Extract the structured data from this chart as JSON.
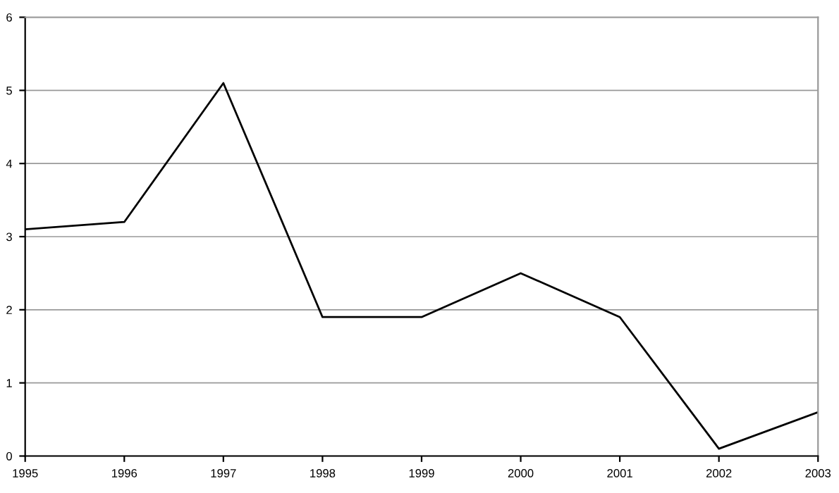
{
  "chart_data": {
    "type": "line",
    "x": [
      1995,
      1996,
      1997,
      1998,
      1999,
      2000,
      2001,
      2002,
      2003
    ],
    "series": [
      {
        "color": "#000000",
        "values": [
          3.1,
          3.2,
          5.1,
          1.9,
          1.9,
          2.5,
          1.9,
          0.1,
          0.6
        ]
      }
    ],
    "xlim": [
      1995,
      2003
    ],
    "xticks": [
      1995,
      1996,
      1997,
      1998,
      1999,
      2000,
      2001,
      2002,
      2003
    ],
    "ylim": [
      0,
      6
    ],
    "yticks": [
      0,
      1,
      2,
      3,
      4,
      5,
      6
    ],
    "grid": "y",
    "legend": false,
    "marker": "none",
    "line_style": "solid"
  }
}
